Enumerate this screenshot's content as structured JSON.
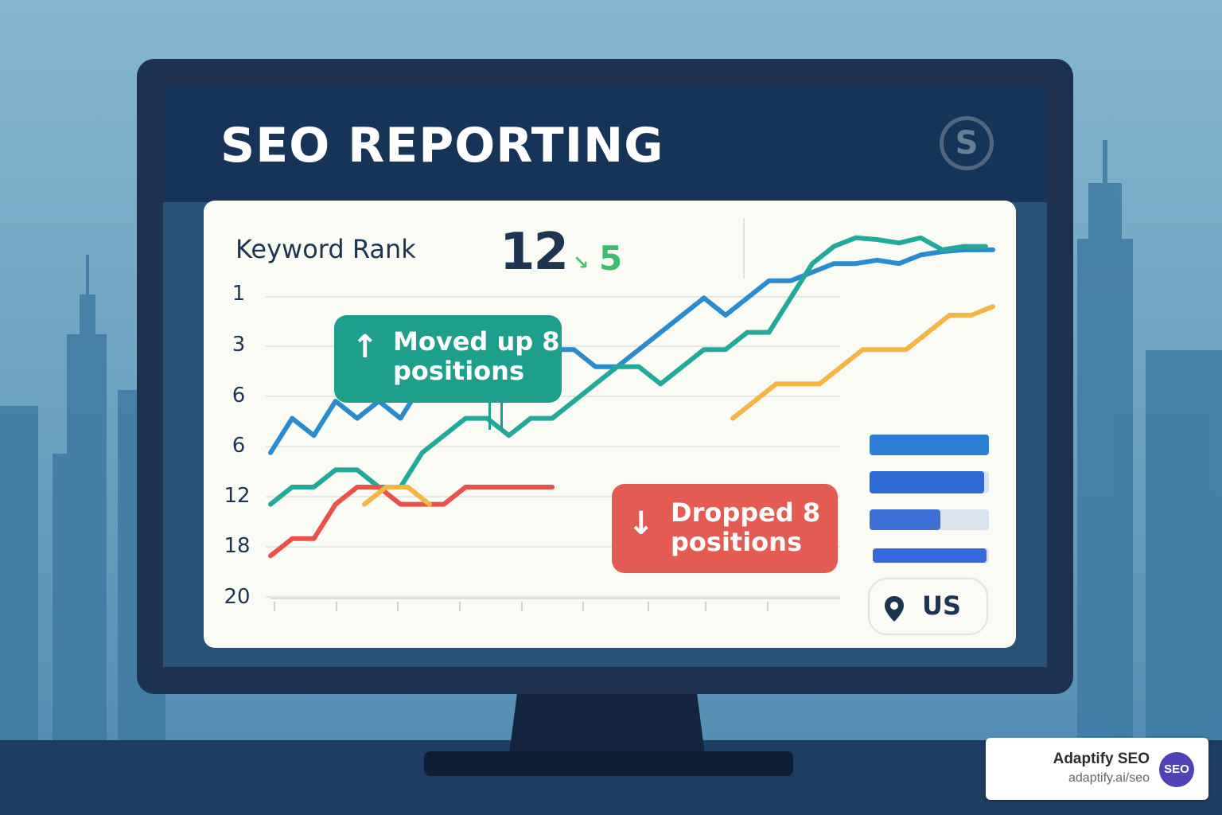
{
  "header": {
    "title": "SEO REPORTING",
    "logo_letter": "S",
    "logo_icon": "s-circle-logo-icon"
  },
  "metric": {
    "label": "Keyword Rank",
    "value": "12",
    "change": "5",
    "change_icon": "check-down-arrow-icon"
  },
  "chart_data": {
    "type": "line",
    "y_tick_labels": [
      "1",
      "3",
      "6",
      "6",
      "12",
      "18",
      "20"
    ],
    "y_direction": "rank, lower is better (inverted axis)",
    "grid": "horizontal",
    "series": [
      {
        "color": "#2a8bd0",
        "x": [
          0,
          3,
          6,
          9,
          12,
          15,
          18,
          21,
          24,
          27,
          30,
          33,
          36,
          39,
          42,
          45,
          48,
          51,
          54,
          57,
          60,
          63,
          66,
          69,
          72,
          75,
          78,
          81,
          84,
          87,
          90,
          93,
          96,
          99,
          100
        ],
        "y": [
          13,
          11,
          12,
          10,
          11,
          10,
          11,
          9,
          9,
          7,
          7,
          7,
          7,
          7,
          7,
          8,
          8,
          7,
          6,
          5,
          4,
          5,
          4,
          3,
          3,
          2.5,
          2,
          2,
          1.8,
          2,
          1.5,
          1.3,
          1.2,
          1.2,
          1.2
        ]
      },
      {
        "color": "#23a99a",
        "x": [
          0,
          3,
          6,
          9,
          12,
          15,
          18,
          21,
          24,
          27,
          30,
          33,
          36,
          39,
          42,
          45,
          48,
          51,
          54,
          57,
          60,
          63,
          66,
          69,
          72,
          75,
          78,
          81,
          84,
          87,
          90,
          93,
          96,
          99
        ],
        "y": [
          16,
          15,
          15,
          14,
          14,
          15,
          15,
          13,
          12,
          11,
          11,
          12,
          11,
          11,
          10,
          9,
          8,
          8,
          9,
          8,
          7,
          7,
          6,
          6,
          4,
          2,
          1,
          0.5,
          0.6,
          0.8,
          0.5,
          1.2,
          1,
          1
        ]
      },
      {
        "color": "#e9514a",
        "x": [
          0,
          3,
          6,
          9,
          12,
          15,
          18,
          21,
          24,
          27,
          30,
          33,
          36,
          39
        ],
        "y": [
          19,
          18,
          18,
          16,
          15,
          15,
          16,
          16,
          16,
          15,
          15,
          15,
          15,
          15
        ]
      },
      {
        "color": "#f5b444",
        "x": [
          13,
          16,
          19,
          22
        ],
        "y": [
          16,
          15,
          15,
          16
        ]
      },
      {
        "color": "#f5b444",
        "x": [
          64,
          67,
          70,
          73,
          76,
          79,
          82,
          85,
          88,
          91,
          94,
          97,
          100
        ],
        "y": [
          11,
          10,
          9,
          9,
          9,
          8,
          7,
          7,
          7,
          6,
          5,
          5,
          4.5
        ]
      }
    ]
  },
  "callouts": {
    "up": {
      "icon": "arrow-up-icon",
      "text": "Moved up 8\npositions"
    },
    "down": {
      "icon": "arrow-down-icon",
      "text": "Dropped 8\npositions"
    }
  },
  "sidebar_bars": [
    {
      "fraction": 1.0,
      "color": "#2b7fd4"
    },
    {
      "fraction": 0.96,
      "color": "#2e6ad6"
    },
    {
      "fraction": 0.59,
      "color": "#3e6fd8"
    },
    {
      "fraction": 0.98,
      "color": "#3568db"
    }
  ],
  "location": {
    "icon": "location-pin-icon",
    "label": "US"
  },
  "watermark": {
    "name": "Adaptify SEO",
    "url": "adaptify.ai/seo",
    "logo_text": "SEO"
  }
}
